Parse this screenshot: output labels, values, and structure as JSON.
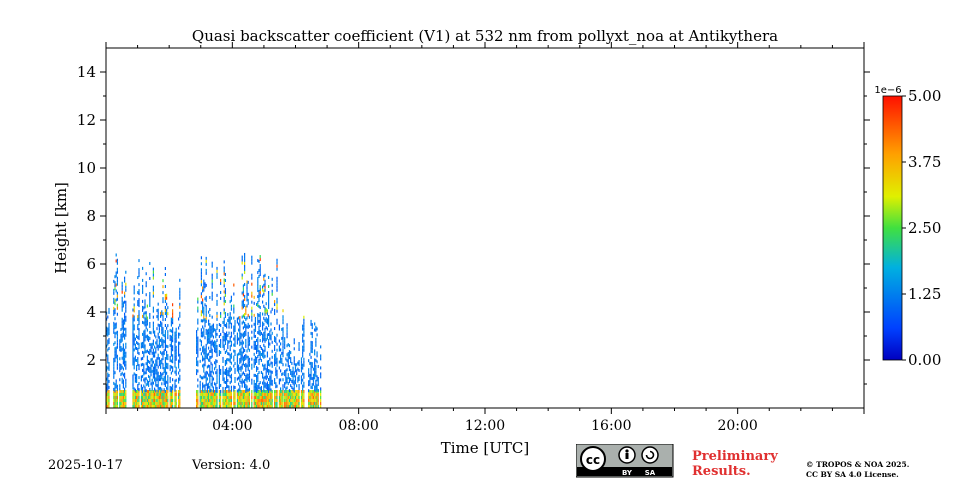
{
  "chart_data": {
    "type": "heatmap",
    "title": "Quasi backscatter coefficient (V1) at 532 nm from pollyxt_noa at Antikythera",
    "xlabel": "Time [UTC]",
    "ylabel": "Height [km]",
    "xlim_hours": [
      0,
      24
    ],
    "ylim_km": [
      0,
      15
    ],
    "x_ticks": [
      {
        "hour": 4,
        "label": "04:00"
      },
      {
        "hour": 8,
        "label": "08:00"
      },
      {
        "hour": 12,
        "label": "12:00"
      },
      {
        "hour": 16,
        "label": "16:00"
      },
      {
        "hour": 20,
        "label": "20:00"
      }
    ],
    "y_ticks": [
      {
        "value": 2,
        "label": "2"
      },
      {
        "value": 4,
        "label": "4"
      },
      {
        "value": 6,
        "label": "6"
      },
      {
        "value": 8,
        "label": "8"
      },
      {
        "value": 10,
        "label": "10"
      },
      {
        "value": 12,
        "label": "12"
      },
      {
        "value": 14,
        "label": "14"
      }
    ],
    "colorbar": {
      "colormap": "jet",
      "range": [
        0,
        5e-06
      ],
      "exponent_label": "1e−6",
      "ticks": [
        {
          "value": 0.0,
          "label": "0.00"
        },
        {
          "value": 1.25,
          "label": "1.25"
        },
        {
          "value": 2.5,
          "label": "2.50"
        },
        {
          "value": 3.75,
          "label": "3.75"
        },
        {
          "value": 5.0,
          "label": "5.00"
        }
      ]
    },
    "data_segments": [
      {
        "start_hour": 0.0,
        "end_hour": 2.35,
        "top_km": 6.5
      },
      {
        "start_hour": 2.85,
        "end_hour": 5.6,
        "top_km": 6.5
      },
      {
        "start_hour": 5.6,
        "end_hour": 6.8,
        "top_km": 4.0
      }
    ],
    "grid": false
  },
  "footer": {
    "date": "2025-10-17",
    "version": "Version: 4.0",
    "preliminary_line1": "Preliminary",
    "preliminary_line2": "Results.",
    "copyright_line1": "© TROPOS & NOA 2025.",
    "copyright_line2": "CC BY SA 4.0 License.",
    "license_by": "BY",
    "license_sa": "SA"
  }
}
